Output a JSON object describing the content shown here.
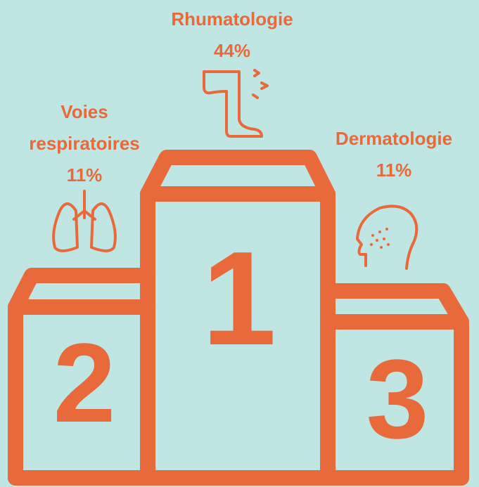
{
  "places": [
    {
      "rank": "1",
      "label": "Rhumatologie",
      "value": "44%"
    },
    {
      "rank": "2",
      "label": "Voies respiratoires",
      "value": "11%"
    },
    {
      "rank": "3",
      "label": "Dermatologie",
      "value": "11%"
    }
  ]
}
